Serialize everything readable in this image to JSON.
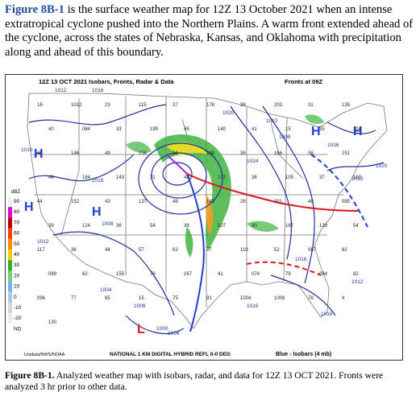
{
  "intro": {
    "fig_label": "Figure 8B-1",
    "text": " is the surface weather map for 12Z 13 October 2021 when an intense extratropical cyclone pushed into the Northern Plains. A warm front extended ahead of the cyclone, across the states of Nebraska, Kansas, and Oklahoma with precipitation along and ahead of this boundary."
  },
  "map": {
    "header_left": "12Z    13 OCT  2021    Isobars, Fronts, Radar & Data",
    "header_right": "Fronts at 09Z",
    "footer_left": "Unidata/NWS/NOAA",
    "footer_center": "NATIONAL  1 KM DIGITAL HYBRID REFL 0-0 DEG",
    "footer_right": "Blue  -  Isobars (4 mb)",
    "scale_title": "dBZ",
    "scale_ticks": [
      "90",
      "80",
      "70",
      "60",
      "50",
      "40",
      "30",
      "20",
      "10",
      "0",
      "-10",
      "-20",
      "ND"
    ],
    "highs": [
      "H",
      "H",
      "H",
      "H",
      "H"
    ],
    "low_label": "L",
    "isobars": [
      "1012",
      "1016",
      "1020",
      "1016",
      "1016",
      "1012",
      "1008",
      "1004",
      "1000",
      "1008",
      "1004",
      "1008",
      "1012",
      "1016",
      "1020",
      "1024",
      "1012",
      "1016",
      "1016",
      "1012",
      "1016"
    ],
    "station_values": [
      "16",
      "1012",
      "23",
      "115",
      "37",
      "178",
      "39",
      "203",
      "31",
      "135",
      "40",
      "084",
      "33",
      "199",
      "45",
      "140",
      "41",
      "15",
      "35",
      "124",
      "42",
      "146",
      "49",
      "136",
      "34",
      "136",
      "38",
      "166",
      "36",
      "151",
      "48",
      "184",
      "143",
      "31",
      "48",
      "172",
      "36",
      "105",
      "37",
      "193",
      "44",
      "152",
      "43",
      "137",
      "48",
      "140",
      "26",
      "201",
      "48",
      "085",
      "39",
      "124",
      "36",
      "54",
      "38",
      "107",
      "30",
      "167",
      "139",
      "54",
      "117",
      "36",
      "44",
      "57",
      "62",
      "77",
      "110",
      "52",
      "067",
      "62",
      "089",
      "62",
      "155",
      "76",
      "167",
      "41",
      "074",
      "78",
      "084",
      "82",
      "096",
      "77",
      "85",
      "15",
      "75",
      "91",
      "1004",
      "1008",
      "76",
      "4",
      "130"
    ],
    "colors": {
      "isobar": "#1e2f9e",
      "cold_front": "#1f3fd6",
      "warm_front": "#e0171f",
      "occluded": "#8a2be2",
      "high": "#1f3fd6",
      "low": "#e0171f",
      "land": "#ffffff",
      "border": "#777777"
    }
  },
  "caption": {
    "label": "Figure 8B-1.",
    "text": " Analyzed weather map with isobars, radar, and data for 12Z 13 OCT 2021. Fronts were analyzed 3 hr prior to other data."
  }
}
